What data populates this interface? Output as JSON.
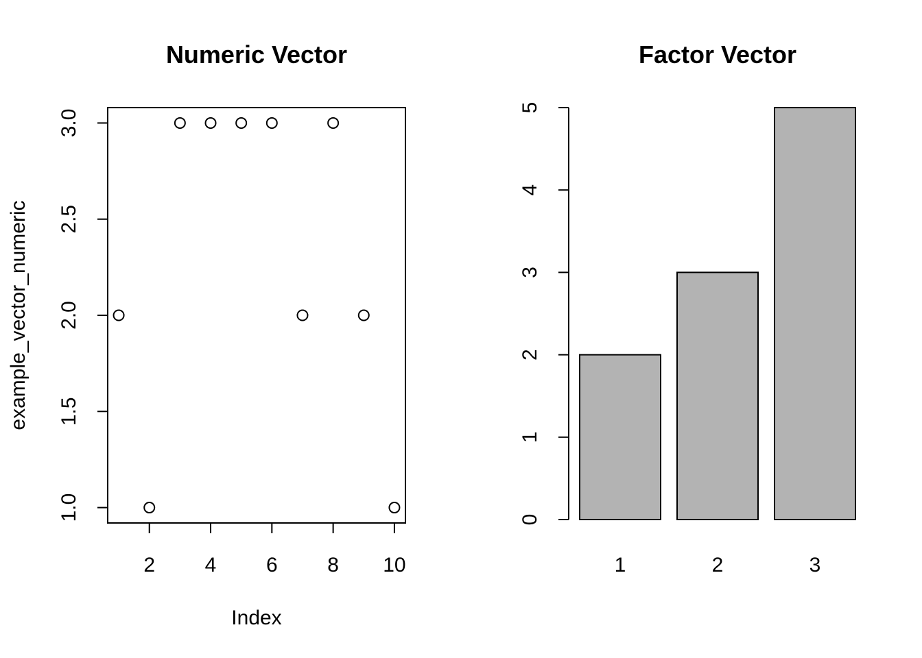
{
  "chart_data": [
    {
      "type": "scatter",
      "title": "Numeric Vector",
      "xlabel": "Index",
      "ylabel": "example_vector_numeric",
      "x": [
        1,
        2,
        3,
        4,
        5,
        6,
        7,
        8,
        9,
        10
      ],
      "y": [
        2,
        1,
        3,
        3,
        3,
        3,
        2,
        3,
        2,
        1
      ],
      "xlim": [
        0.64,
        10.36
      ],
      "ylim": [
        0.92,
        3.08
      ],
      "xticks": [
        2,
        4,
        6,
        8,
        10
      ],
      "yticks": [
        1.0,
        1.5,
        2.0,
        2.5,
        3.0
      ],
      "xtick_labels": [
        "2",
        "4",
        "6",
        "8",
        "10"
      ],
      "ytick_labels": [
        "1.0",
        "1.5",
        "2.0",
        "2.5",
        "3.0"
      ],
      "marker": "open-circle",
      "grid": false
    },
    {
      "type": "bar",
      "title": "Factor Vector",
      "xlabel": "",
      "ylabel": "",
      "categories": [
        "1",
        "2",
        "3"
      ],
      "values": [
        2,
        3,
        5
      ],
      "ylim": [
        0,
        5
      ],
      "yticks": [
        0,
        1,
        2,
        3,
        4,
        5
      ],
      "ytick_labels": [
        "0",
        "1",
        "2",
        "3",
        "4",
        "5"
      ],
      "bar_color": "#b3b3b3",
      "grid": false
    }
  ]
}
